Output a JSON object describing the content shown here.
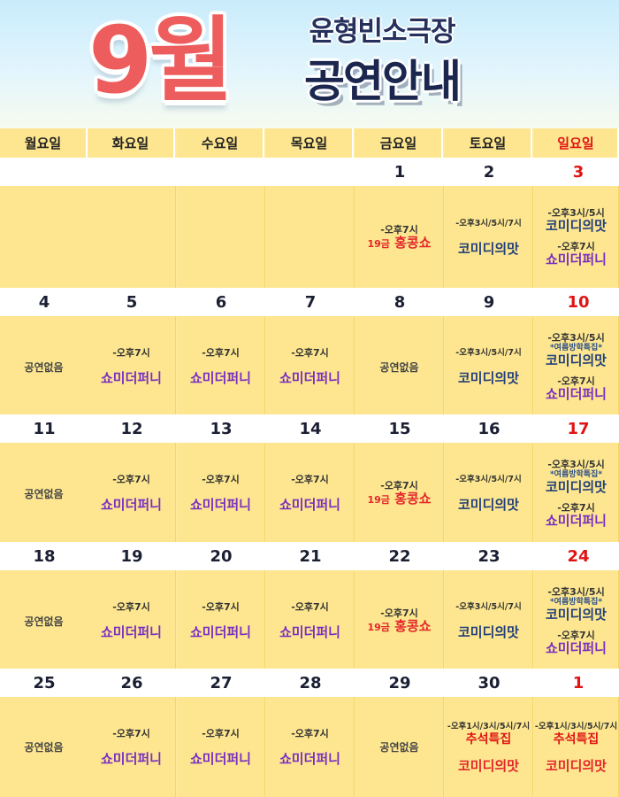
{
  "header": {
    "month": "9월",
    "theater": "윤형빈소극장",
    "subtitle": "공연안내"
  },
  "weekdays": [
    "월요일",
    "화요일",
    "수요일",
    "목요일",
    "금요일",
    "토요일",
    "일요일"
  ],
  "colors": {
    "accent_red": "#ee5d5d",
    "sunday_red": "#e01414",
    "navy": "#1c274f",
    "purple_show": "#7a2fc0",
    "cell_yellow": "#fde68f"
  },
  "weeks": [
    {
      "dates": [
        "",
        "",
        "",
        "",
        "1",
        "2",
        "3"
      ],
      "cells": [
        null,
        null,
        null,
        null,
        {
          "time": "-오후7시",
          "age": "19금",
          "show": "홍콩쇼",
          "style": "red"
        },
        {
          "time": "-오후3시/5시/7시",
          "show": "코미디의맛",
          "style": "navy"
        },
        {
          "time": "-오후3시/5시",
          "show": "코미디의맛",
          "style": "navy",
          "time2": "-오후7시",
          "show2": "쇼미더퍼니",
          "style2": "purple"
        }
      ]
    },
    {
      "dates": [
        "4",
        "5",
        "6",
        "7",
        "8",
        "9",
        "10"
      ],
      "cells": [
        {
          "none": "공연없음"
        },
        {
          "time": "-오후7시",
          "show": "쇼미더퍼니",
          "style": "purple"
        },
        {
          "time": "-오후7시",
          "show": "쇼미더퍼니",
          "style": "purple"
        },
        {
          "time": "-오후7시",
          "show": "쇼미더퍼니",
          "style": "purple"
        },
        {
          "none": "공연없음"
        },
        {
          "time": "-오후3시/5시/7시",
          "show": "코미디의맛",
          "style": "navy"
        },
        {
          "time": "-오후3시/5시",
          "special": "*여름방학특집*",
          "show": "코미디의맛",
          "style": "navy",
          "time2": "-오후7시",
          "show2": "쇼미더퍼니",
          "style2": "purple"
        }
      ]
    },
    {
      "dates": [
        "11",
        "12",
        "13",
        "14",
        "15",
        "16",
        "17"
      ],
      "cells": [
        {
          "none": "공연없음"
        },
        {
          "time": "-오후7시",
          "show": "쇼미더퍼니",
          "style": "purple"
        },
        {
          "time": "-오후7시",
          "show": "쇼미더퍼니",
          "style": "purple"
        },
        {
          "time": "-오후7시",
          "show": "쇼미더퍼니",
          "style": "purple"
        },
        {
          "time": "-오후7시",
          "age": "19금",
          "show": "홍콩쇼",
          "style": "red"
        },
        {
          "time": "-오후3시/5시/7시",
          "show": "코미디의맛",
          "style": "navy"
        },
        {
          "time": "-오후3시/5시",
          "special": "*여름방학특집*",
          "show": "코미디의맛",
          "style": "navy",
          "time2": "-오후7시",
          "show2": "쇼미더퍼니",
          "style2": "purple"
        }
      ]
    },
    {
      "dates": [
        "18",
        "19",
        "20",
        "21",
        "22",
        "23",
        "24"
      ],
      "cells": [
        {
          "none": "공연없음"
        },
        {
          "time": "-오후7시",
          "show": "쇼미더퍼니",
          "style": "purple"
        },
        {
          "time": "-오후7시",
          "show": "쇼미더퍼니",
          "style": "purple"
        },
        {
          "time": "-오후7시",
          "show": "쇼미더퍼니",
          "style": "purple"
        },
        {
          "time": "-오후7시",
          "age": "19금",
          "show": "홍콩쇼",
          "style": "red"
        },
        {
          "time": "-오후3시/5시/7시",
          "show": "코미디의맛",
          "style": "navy"
        },
        {
          "time": "-오후3시/5시",
          "special": "*여름방학특집*",
          "show": "코미디의맛",
          "style": "navy",
          "time2": "-오후7시",
          "show2": "쇼미더퍼니",
          "style2": "purple"
        }
      ]
    },
    {
      "dates": [
        "25",
        "26",
        "27",
        "28",
        "29",
        "30",
        "1"
      ],
      "cells": [
        {
          "none": "공연없음"
        },
        {
          "time": "-오후7시",
          "show": "쇼미더퍼니",
          "style": "purple"
        },
        {
          "time": "-오후7시",
          "show": "쇼미더퍼니",
          "style": "purple"
        },
        {
          "time": "-오후7시",
          "show": "쇼미더퍼니",
          "style": "purple"
        },
        {
          "none": "공연없음"
        },
        {
          "time": "-오후1시/3시/5시/7시",
          "holiday": "추석특집",
          "show": "코미디의맛",
          "style": "red"
        },
        {
          "time": "-오후1시/3시/5시/7시",
          "holiday": "추석특집",
          "show": "코미디의맛",
          "style": "red"
        }
      ]
    }
  ]
}
